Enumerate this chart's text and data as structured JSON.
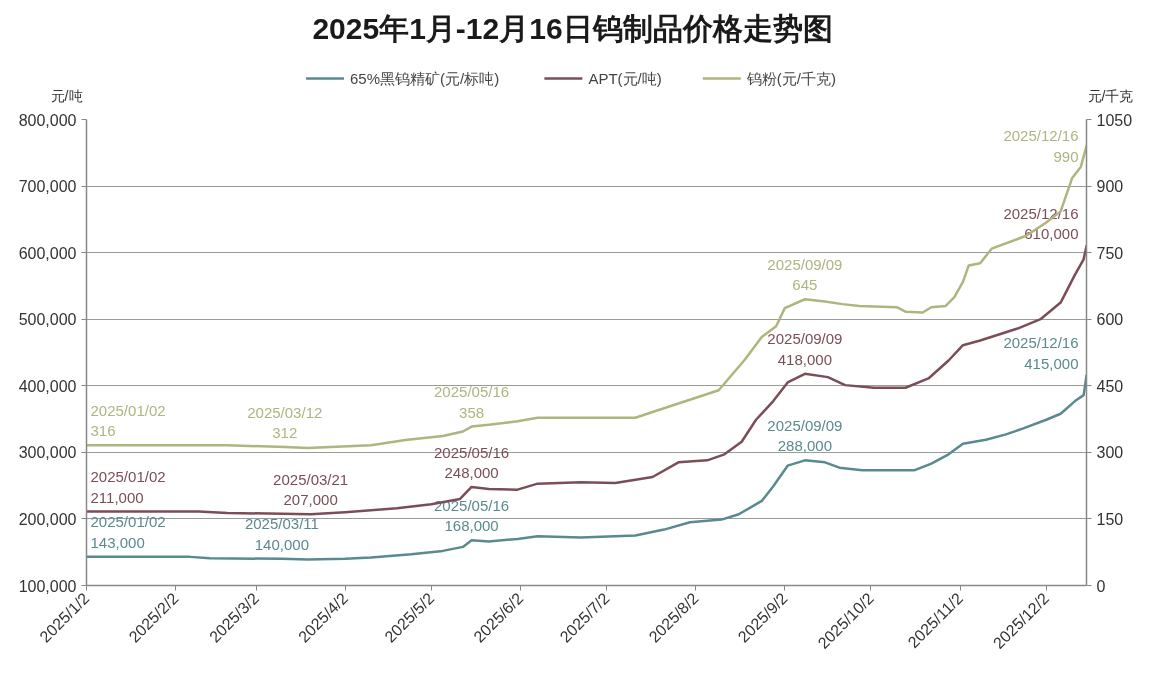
{
  "chart_data": {
    "type": "line",
    "title": "2025年1月-12月16日钨制品价格走势图",
    "ylabel": "元/吨",
    "y2label": "元/千克",
    "legend": "top",
    "grid": "y",
    "xlim": [
      "2025-01-02",
      "2025-12-16"
    ],
    "xticks": [
      {
        "value": "2025-01-02",
        "label": "2025/1/2"
      },
      {
        "value": "2025-02-02",
        "label": "2025/2/2"
      },
      {
        "value": "2025-03-02",
        "label": "2025/3/2"
      },
      {
        "value": "2025-04-02",
        "label": "2025/4/2"
      },
      {
        "value": "2025-05-02",
        "label": "2025/5/2"
      },
      {
        "value": "2025-06-02",
        "label": "2025/6/2"
      },
      {
        "value": "2025-07-02",
        "label": "2025/7/2"
      },
      {
        "value": "2025-08-02",
        "label": "2025/8/2"
      },
      {
        "value": "2025-09-02",
        "label": "2025/9/2"
      },
      {
        "value": "2025-10-02",
        "label": "2025/10/2"
      },
      {
        "value": "2025-11-02",
        "label": "2025/11/2"
      },
      {
        "value": "2025-12-02",
        "label": "2025/12/2"
      }
    ],
    "ylim": [
      100000,
      800000
    ],
    "yticks": [
      {
        "value": 100000,
        "label": "100,000"
      },
      {
        "value": 200000,
        "label": "200,000"
      },
      {
        "value": 300000,
        "label": "300,000"
      },
      {
        "value": 400000,
        "label": "400,000"
      },
      {
        "value": 500000,
        "label": "500,000"
      },
      {
        "value": 600000,
        "label": "600,000"
      },
      {
        "value": 700000,
        "label": "700,000"
      },
      {
        "value": 800000,
        "label": "800,000"
      }
    ],
    "y2lim": [
      0,
      1050
    ],
    "y2ticks": [
      0,
      150,
      300,
      450,
      600,
      750,
      900,
      1050
    ],
    "series": [
      {
        "name": "65%黑钨精矿(元/标吨)",
        "color": "#5a8a8e",
        "x": [
          "2025-01-02",
          "2025-02-07",
          "2025-02-14",
          "2025-03-11",
          "2025-03-20",
          "2025-04-02",
          "2025-04-11",
          "2025-04-25",
          "2025-05-06",
          "2025-05-13",
          "2025-05-16",
          "2025-05-22",
          "2025-06-01",
          "2025-06-08",
          "2025-06-23",
          "2025-07-12",
          "2025-07-22",
          "2025-07-31",
          "2025-08-11",
          "2025-08-17",
          "2025-08-25",
          "2025-08-29",
          "2025-09-03",
          "2025-09-09",
          "2025-09-16",
          "2025-09-21",
          "2025-09-29",
          "2025-10-17",
          "2025-10-23",
          "2025-10-29",
          "2025-11-03",
          "2025-11-11",
          "2025-11-18",
          "2025-11-24",
          "2025-12-02",
          "2025-12-07",
          "2025-12-12",
          "2025-12-15",
          "2025-12-16"
        ],
        "values": [
          143000,
          143000,
          141000,
          140000,
          139000,
          140000,
          142000,
          147000,
          152000,
          158000,
          168000,
          166000,
          170000,
          174000,
          172000,
          175000,
          184000,
          195000,
          199000,
          207000,
          227000,
          249000,
          280000,
          288000,
          285000,
          277000,
          273000,
          273000,
          283000,
          297000,
          313000,
          319000,
          327000,
          336000,
          349000,
          358000,
          377000,
          386000,
          415000
        ],
        "value_labels": [
          "2025/01/02\n143,000",
          null,
          null,
          "2025/03/11\n140,000",
          null,
          null,
          null,
          null,
          null,
          null,
          "2025/05/16\n168,000",
          null,
          null,
          null,
          null,
          null,
          null,
          null,
          null,
          null,
          null,
          null,
          null,
          "2025/09/09\n288,000",
          null,
          null,
          null,
          null,
          null,
          null,
          null,
          null,
          null,
          null,
          null,
          null,
          null,
          null,
          "2025/12/16\n415,000"
        ]
      },
      {
        "name": "APT(元/吨)",
        "color": "#7b4e57",
        "x": [
          "2025-01-02",
          "2025-02-10",
          "2025-02-20",
          "2025-03-21",
          "2025-04-02",
          "2025-04-20",
          "2025-05-02",
          "2025-05-12",
          "2025-05-16",
          "2025-05-22",
          "2025-06-01",
          "2025-06-08",
          "2025-06-23",
          "2025-07-05",
          "2025-07-18",
          "2025-07-27",
          "2025-08-06",
          "2025-08-12",
          "2025-08-18",
          "2025-08-23",
          "2025-08-29",
          "2025-09-03",
          "2025-09-09",
          "2025-09-17",
          "2025-09-23",
          "2025-10-03",
          "2025-10-14",
          "2025-10-22",
          "2025-10-29",
          "2025-11-03",
          "2025-11-09",
          "2025-11-22",
          "2025-11-30",
          "2025-12-07",
          "2025-12-12",
          "2025-12-15",
          "2025-12-16"
        ],
        "values": [
          211000,
          211000,
          209000,
          207000,
          210000,
          216000,
          222000,
          230000,
          248000,
          245000,
          244000,
          253000,
          255000,
          254000,
          263000,
          285000,
          288000,
          297000,
          316000,
          349000,
          377000,
          405000,
          418000,
          413000,
          401000,
          397000,
          397000,
          411000,
          438000,
          461000,
          468000,
          486000,
          500000,
          525000,
          567000,
          590000,
          610000
        ],
        "value_labels": [
          "2025/01/02\n211,000",
          null,
          null,
          "2025/03/21\n207,000",
          null,
          null,
          null,
          null,
          "2025/05/16\n248,000",
          null,
          null,
          null,
          null,
          null,
          null,
          null,
          null,
          null,
          null,
          null,
          null,
          null,
          "2025/09/09\n418,000",
          null,
          null,
          null,
          null,
          null,
          null,
          null,
          null,
          null,
          null,
          null,
          null,
          null,
          "2025/12/16\n610,000"
        ]
      },
      {
        "name": "钨粉(元/千克)",
        "color": "#b0b47e",
        "axis": "y2",
        "x": [
          "2025-01-02",
          "2025-02-20",
          "2025-03-12",
          "2025-03-20",
          "2025-04-11",
          "2025-04-23",
          "2025-05-06",
          "2025-05-13",
          "2025-05-16",
          "2025-05-22",
          "2025-06-01",
          "2025-06-08",
          "2025-07-12",
          "2025-07-18",
          "2025-07-27",
          "2025-08-10",
          "2025-08-19",
          "2025-08-25",
          "2025-08-30",
          "2025-09-02",
          "2025-09-09",
          "2025-09-16",
          "2025-09-22",
          "2025-09-28",
          "2025-10-11",
          "2025-10-14",
          "2025-10-20",
          "2025-10-23",
          "2025-10-28",
          "2025-10-31",
          "2025-11-03",
          "2025-11-05",
          "2025-11-09",
          "2025-11-13",
          "2025-11-25",
          "2025-12-02",
          "2025-12-07",
          "2025-12-11",
          "2025-12-14",
          "2025-12-16"
        ],
        "values": [
          316,
          316,
          312,
          310,
          316,
          328,
          337,
          347,
          358,
          362,
          370,
          378,
          378,
          391,
          410,
          440,
          508,
          560,
          584,
          625,
          645,
          640,
          634,
          630,
          627,
          617,
          615,
          627,
          630,
          650,
          684,
          721,
          726,
          759,
          788,
          818,
          843,
          918,
          943,
          990
        ],
        "value_labels": [
          "2025/01/02\n316",
          null,
          "2025/03/12\n312",
          null,
          null,
          null,
          null,
          null,
          "2025/05/16\n358",
          null,
          null,
          null,
          null,
          null,
          null,
          null,
          null,
          null,
          null,
          null,
          "2025/09/09\n645",
          null,
          null,
          null,
          null,
          null,
          null,
          null,
          null,
          null,
          null,
          null,
          null,
          null,
          null,
          null,
          null,
          null,
          null,
          "2025/12/16\n990"
        ]
      }
    ]
  }
}
